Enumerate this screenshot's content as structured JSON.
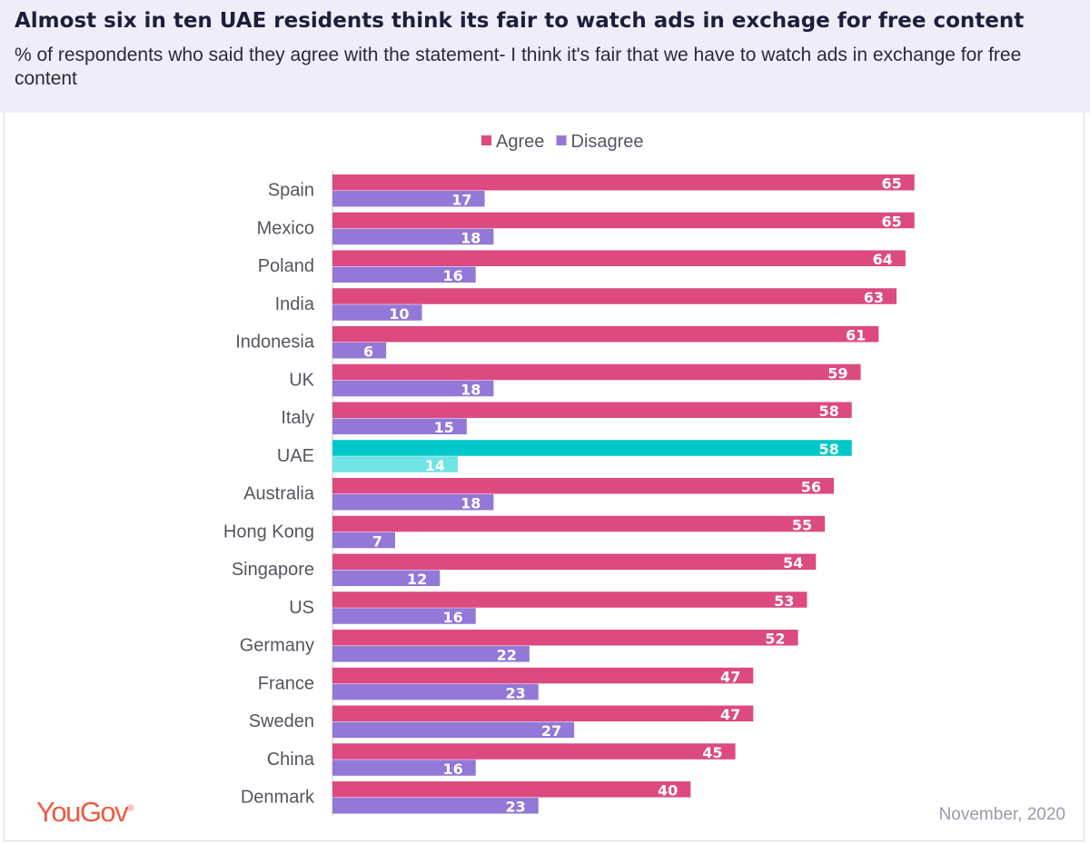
{
  "header": {
    "title": "Almost six in ten UAE residents think its fair to watch ads in exchage for free content",
    "subtitle": "% of respondents who said they agree with the statement- I think it's fair that we have to watch ads in exchange for free content"
  },
  "footer": {
    "brand": "YouGov",
    "date": "November, 2020"
  },
  "chart_data": {
    "type": "bar",
    "orientation": "horizontal",
    "title": "Almost six in ten UAE residents think its fair to watch ads in exchage for free content",
    "legend_position": "top-center",
    "grid": false,
    "xlim": [
      0,
      70
    ],
    "highlight_category": "UAE",
    "categories": [
      "Spain",
      "Mexico",
      "Poland",
      "India",
      "Indonesia",
      "UK",
      "Italy",
      "UAE",
      "Australia",
      "Hong Kong",
      "Singapore",
      "US",
      "Germany",
      "France",
      "Sweden",
      "China",
      "Denmark"
    ],
    "series": [
      {
        "name": "Agree",
        "color": "#dc4a80",
        "highlight_color": "#00c8c8",
        "values": [
          65,
          65,
          64,
          63,
          61,
          59,
          58,
          58,
          56,
          55,
          54,
          53,
          52,
          47,
          47,
          45,
          40
        ]
      },
      {
        "name": "Disagree",
        "color": "#9378d8",
        "highlight_color": "#6fe4e4",
        "values": [
          17,
          18,
          16,
          10,
          6,
          18,
          15,
          14,
          18,
          7,
          12,
          16,
          22,
          23,
          27,
          16,
          23
        ]
      }
    ]
  }
}
